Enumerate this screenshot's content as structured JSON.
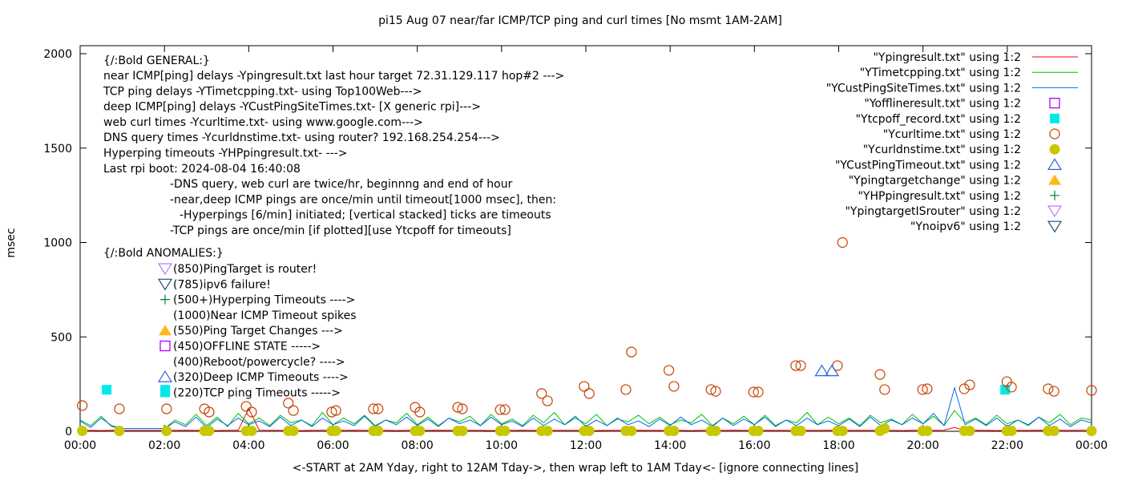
{
  "chart_data": {
    "type": "line",
    "title": "pi15 Aug 07  near/far ICMP/TCP ping and curl times [No msmt 1AM-2AM]",
    "xlabel": "<-START at 2AM Yday, right to 12AM Tday->, then wrap left to 1AM Tday<- [ignore connecting lines]",
    "ylabel": "msec",
    "xlim": [
      0,
      24
    ],
    "ylim": [
      0,
      2000
    ],
    "yticks": [
      "0",
      "500",
      "1000",
      "1500",
      "2000"
    ],
    "xticks": [
      "00:00",
      "02:00",
      "04:00",
      "06:00",
      "08:00",
      "10:00",
      "12:00",
      "14:00",
      "16:00",
      "18:00",
      "20:00",
      "22:00",
      "00:00"
    ],
    "grid": false,
    "legend_position": "top-right",
    "x_unit": "hours",
    "x_step": 0.25,
    "series": [
      {
        "name": "\"Ypingresult.txt\" using 1:2",
        "style": "line",
        "color": "#ff0000",
        "values": [
          5,
          5,
          4,
          6,
          5,
          5,
          5,
          5,
          5,
          5,
          6,
          5,
          5,
          4,
          5,
          5,
          120,
          6,
          5,
          5,
          5,
          4,
          5,
          5,
          5,
          5,
          6,
          5,
          5,
          5,
          4,
          5,
          5,
          5,
          6,
          5,
          5,
          5,
          5,
          4,
          5,
          5,
          6,
          5,
          5,
          5,
          5,
          5,
          5,
          4,
          5,
          5,
          5,
          6,
          5,
          5,
          5,
          5,
          4,
          5,
          5,
          5,
          6,
          5,
          5,
          5,
          5,
          5,
          4,
          5,
          5,
          6,
          5,
          5,
          5,
          5,
          5,
          5,
          4,
          5,
          5,
          5,
          6,
          20,
          5,
          5,
          5,
          4,
          5,
          5,
          5,
          6,
          5,
          5,
          5,
          5,
          5
        ]
      },
      {
        "name": "\"YTimetcpping.txt\" using 1:2",
        "style": "line",
        "color": "#00c000",
        "values": [
          60,
          30,
          80,
          25,
          15,
          15,
          15,
          15,
          15,
          60,
          35,
          90,
          30,
          75,
          25,
          95,
          40,
          70,
          30,
          85,
          45,
          60,
          30,
          100,
          35,
          70,
          40,
          85,
          30,
          60,
          45,
          95,
          35,
          75,
          30,
          70,
          50,
          80,
          30,
          90,
          40,
          65,
          30,
          85,
          45,
          100,
          35,
          70,
          40,
          90,
          30,
          65,
          50,
          85,
          40,
          75,
          35,
          60,
          45,
          90,
          30,
          70,
          40,
          80,
          35,
          85,
          30,
          60,
          45,
          100,
          35,
          75,
          40,
          70,
          30,
          85,
          45,
          65,
          35,
          90,
          40,
          80,
          30,
          110,
          45,
          70,
          35,
          85,
          40,
          60,
          30,
          75,
          45,
          90,
          35,
          70,
          60
        ]
      },
      {
        "name": "\"YCustPingSiteTimes.txt\" using 1:2",
        "style": "line",
        "color": "#0066ff",
        "values": [
          55,
          20,
          70,
          30,
          15,
          15,
          15,
          15,
          15,
          50,
          25,
          75,
          20,
          65,
          30,
          70,
          35,
          55,
          25,
          75,
          30,
          60,
          25,
          70,
          35,
          55,
          30,
          80,
          25,
          60,
          35,
          75,
          30,
          65,
          25,
          70,
          40,
          60,
          30,
          75,
          35,
          55,
          25,
          70,
          30,
          65,
          35,
          80,
          25,
          60,
          30,
          70,
          35,
          55,
          25,
          65,
          30,
          75,
          35,
          60,
          25,
          70,
          30,
          65,
          35,
          75,
          25,
          60,
          30,
          70,
          35,
          55,
          30,
          65,
          25,
          75,
          30,
          60,
          35,
          70,
          40,
          95,
          30,
          230,
          35,
          65,
          30,
          70,
          25,
          60,
          35,
          75,
          30,
          65,
          25,
          60,
          45
        ]
      },
      {
        "name": "\"Yofflineresult.txt\" using 1:2",
        "style": "open-square",
        "color": "#b000ff",
        "points": []
      },
      {
        "name": "\"Ytcpoff_record.txt\" using 1:2",
        "style": "filled-square",
        "color": "#00e8e8",
        "points": [
          [
            0.63,
            220
          ],
          [
            2.02,
            220
          ],
          [
            21.95,
            220
          ]
        ]
      },
      {
        "name": "\"Ycurltime.txt\" using 1:2",
        "style": "open-circle",
        "color": "#c84000",
        "points": [
          [
            0.05,
            136
          ],
          [
            0.93,
            119
          ],
          [
            2.05,
            119
          ],
          [
            2.95,
            119
          ],
          [
            3.06,
            102
          ],
          [
            3.94,
            132
          ],
          [
            4.07,
            102
          ],
          [
            4.94,
            149
          ],
          [
            5.06,
            110
          ],
          [
            5.97,
            102
          ],
          [
            6.07,
            110
          ],
          [
            6.96,
            119
          ],
          [
            7.07,
            119
          ],
          [
            7.95,
            127
          ],
          [
            8.06,
            102
          ],
          [
            8.96,
            127
          ],
          [
            9.07,
            119
          ],
          [
            9.97,
            115
          ],
          [
            10.08,
            115
          ],
          [
            10.95,
            200
          ],
          [
            11.09,
            161
          ],
          [
            11.96,
            238
          ],
          [
            12.08,
            200
          ],
          [
            12.95,
            221
          ],
          [
            13.08,
            420
          ],
          [
            13.97,
            323
          ],
          [
            14.09,
            238
          ],
          [
            14.97,
            221
          ],
          [
            15.08,
            212
          ],
          [
            15.98,
            208
          ],
          [
            16.09,
            208
          ],
          [
            16.98,
            348
          ],
          [
            17.1,
            348
          ],
          [
            17.97,
            348
          ],
          [
            18.09,
            1000
          ],
          [
            18.98,
            301
          ],
          [
            19.09,
            221
          ],
          [
            19.99,
            221
          ],
          [
            20.1,
            225
          ],
          [
            20.98,
            225
          ],
          [
            21.11,
            246
          ],
          [
            21.99,
            263
          ],
          [
            22.1,
            234
          ],
          [
            22.97,
            225
          ],
          [
            23.11,
            212
          ],
          [
            24.0,
            217
          ]
        ]
      },
      {
        "name": "\"Ycurldnstime.txt\" using 1:2",
        "style": "filled-circle",
        "color": "#c8c800",
        "points": [
          [
            0.05,
            2
          ],
          [
            0.93,
            2
          ],
          [
            2.05,
            2
          ],
          [
            2.95,
            2
          ],
          [
            3.06,
            2
          ],
          [
            3.94,
            2
          ],
          [
            4.07,
            2
          ],
          [
            4.94,
            2
          ],
          [
            5.06,
            2
          ],
          [
            5.97,
            2
          ],
          [
            6.07,
            2
          ],
          [
            6.96,
            2
          ],
          [
            7.07,
            2
          ],
          [
            7.95,
            2
          ],
          [
            8.06,
            2
          ],
          [
            8.96,
            2
          ],
          [
            9.07,
            2
          ],
          [
            9.97,
            2
          ],
          [
            10.08,
            2
          ],
          [
            10.95,
            2
          ],
          [
            11.09,
            2
          ],
          [
            11.96,
            2
          ],
          [
            12.08,
            2
          ],
          [
            12.95,
            2
          ],
          [
            13.08,
            2
          ],
          [
            13.97,
            2
          ],
          [
            14.09,
            2
          ],
          [
            14.97,
            2
          ],
          [
            15.08,
            2
          ],
          [
            15.98,
            2
          ],
          [
            16.09,
            2
          ],
          [
            16.98,
            2
          ],
          [
            17.1,
            2
          ],
          [
            17.97,
            2
          ],
          [
            18.09,
            2
          ],
          [
            18.98,
            2
          ],
          [
            19.09,
            15
          ],
          [
            19.99,
            2
          ],
          [
            20.1,
            2
          ],
          [
            20.98,
            2
          ],
          [
            21.11,
            2
          ],
          [
            21.99,
            2
          ],
          [
            22.1,
            2
          ],
          [
            22.97,
            2
          ],
          [
            23.11,
            2
          ],
          [
            24.0,
            2
          ]
        ]
      },
      {
        "name": "\"YCustPingTimeout.txt\" using 1:2",
        "style": "open-triangle-up",
        "color": "#3060e0",
        "points": [
          [
            17.6,
            320
          ],
          [
            17.84,
            320
          ]
        ]
      },
      {
        "name": "\"Ypingtargetchange\" using 1:2",
        "style": "filled-triangle-up",
        "color": "#ffb818",
        "points": []
      },
      {
        "name": "\"YHPpingresult.txt\" using 1:2",
        "style": "plus",
        "color": "#008040",
        "points": []
      },
      {
        "name": "\"YpingtargetISrouter\" using 1:2",
        "style": "open-triangle-down",
        "color": "#b080ff",
        "points": []
      },
      {
        "name": "\"Ynoipv6\" using 1:2",
        "style": "open-triangle-down",
        "color": "#204e70",
        "points": []
      }
    ],
    "annotations": {
      "general_header": "{/:Bold GENERAL:}",
      "general_lines": [
        "near ICMP[ping] delays -Ypingresult.txt last hour target 72.31.129.117 hop#2 --->",
        "TCP ping delays -YTimetcpping.txt- using Top100Web--->",
        "deep ICMP[ping] delays -YCustPingSiteTimes.txt- [X generic rpi]--->",
        "web curl times -Ycurltime.txt- using www.google.com--->",
        "DNS query times -Ycurldnstime.txt- using router? 192.168.254.254--->",
        "Hyperping timeouts -YHPpingresult.txt- --->",
        "Last rpi boot: 2024-08-04 16:40:08"
      ],
      "notes": [
        "-DNS query, web curl are twice/hr, beginnng and end of hour",
        "-near,deep ICMP pings are once/min until timeout[1000 msec], then:",
        "-Hyperpings [6/min] initiated; [vertical stacked] ticks are timeouts",
        "-TCP pings are once/min [if plotted][use Ytcpoff for timeouts]"
      ],
      "anomalies_header": "{/:Bold ANOMALIES:}",
      "anomalies": [
        {
          "text": "(850)PingTarget is router!",
          "symbol": "open-triangle-down",
          "color": "#b080ff"
        },
        {
          "text": "(785)ipv6 failure!",
          "symbol": "open-triangle-down",
          "color": "#204e70"
        },
        {
          "text": "(500+)Hyperping Timeouts ---->",
          "symbol": "plus",
          "color": "#008040"
        },
        {
          "text": "(1000)Near ICMP Timeout spikes",
          "symbol": "",
          "color": ""
        },
        {
          "text": "(550)Ping Target Changes --->",
          "symbol": "filled-triangle-up",
          "color": "#ffb818"
        },
        {
          "text": "(450)OFFLINE STATE ----->",
          "symbol": "open-square",
          "color": "#b000ff"
        },
        {
          "text": "(400)Reboot/powercycle? ---->",
          "symbol": "",
          "color": ""
        },
        {
          "text": "(320)Deep ICMP Timeouts ---->",
          "symbol": "open-triangle-up",
          "color": "#3060e0"
        },
        {
          "text": "(220)TCP ping Timeouts ----->",
          "symbol": "filled-square",
          "color": "#00e8e8"
        }
      ]
    }
  }
}
